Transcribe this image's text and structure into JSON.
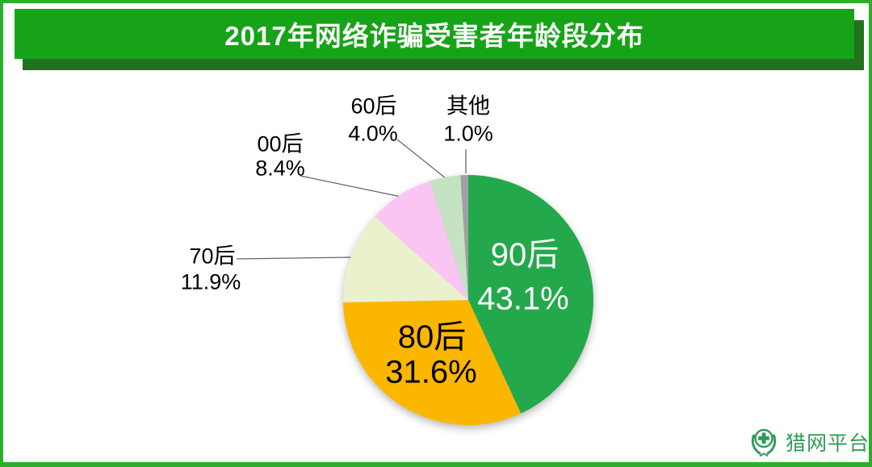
{
  "title": "2017年网络诈骗受害者年龄段分布",
  "colors": {
    "frame_border": "#2BAE2B",
    "title_bar": "#17A317",
    "title_bar_shadow": "#21711F",
    "title_text": "#FFFFFF",
    "leader_line": "#666666",
    "brand_green": "#2E9B57"
  },
  "chart_data": {
    "type": "pie",
    "title": "2017年网络诈骗受害者年龄段分布",
    "unit": "%",
    "start_angle_deg": 0,
    "direction": "clockwise",
    "legend": "none",
    "slices": [
      {
        "label": "90后",
        "value": 43.1,
        "display": "43.1%",
        "color": "#23A94C",
        "label_position": "inside",
        "text_color": "#FFFFFF"
      },
      {
        "label": "80后",
        "value": 31.6,
        "display": "31.6%",
        "color": "#FBB700",
        "label_position": "inside",
        "text_color": "#000000"
      },
      {
        "label": "70后",
        "value": 11.9,
        "display": "11.9%",
        "color": "#EBF1CC",
        "label_position": "outside",
        "text_color": "#000000"
      },
      {
        "label": "00后",
        "value": 8.4,
        "display": "8.4%",
        "color": "#FAC4F3",
        "label_position": "outside",
        "text_color": "#000000"
      },
      {
        "label": "60后",
        "value": 4.0,
        "display": "4.0%",
        "color": "#C4E3C3",
        "label_position": "outside",
        "text_color": "#000000"
      },
      {
        "label": "其他",
        "value": 1.0,
        "display": "1.0%",
        "color": "#A0A0A2",
        "label_position": "outside",
        "text_color": "#000000"
      }
    ]
  },
  "brand": {
    "name": "猎网平台",
    "icon": "laurel-cross-emblem"
  }
}
